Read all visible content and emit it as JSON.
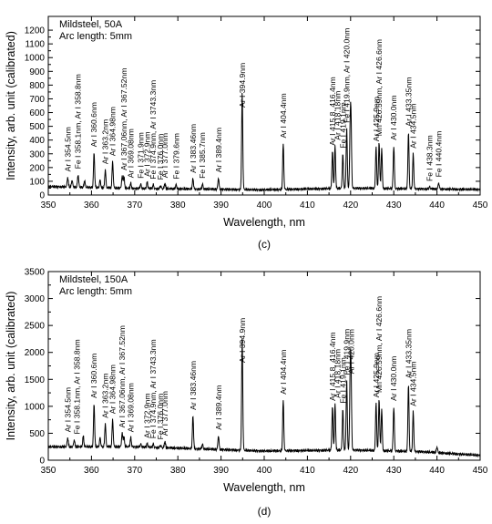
{
  "chart_data": [
    {
      "type": "line",
      "title": "",
      "subtitle_lines": [
        "Mildsteel, 50A",
        "Arc length: 5mm"
      ],
      "xlabel": "Wavelength, nm",
      "ylabel": "Intensity, arb. unit (calibrated)",
      "xlim": [
        350,
        450
      ],
      "ylim": [
        0,
        1300
      ],
      "xticks": [
        350,
        360,
        370,
        380,
        390,
        400,
        410,
        420,
        430,
        440,
        450
      ],
      "yticks": [
        0,
        100,
        200,
        300,
        400,
        500,
        600,
        700,
        800,
        900,
        1000,
        1100,
        1200
      ],
      "caption": "(c)",
      "baseline": [
        [
          350,
          62
        ],
        [
          370,
          48
        ],
        [
          400,
          38
        ],
        [
          420,
          50
        ],
        [
          436,
          45
        ],
        [
          450,
          40
        ]
      ],
      "peaks": [
        [
          354.5,
          130
        ],
        [
          355.5,
          110
        ],
        [
          356.9,
          150
        ],
        [
          358.4,
          105
        ],
        [
          360.6,
          310
        ],
        [
          362.0,
          110
        ],
        [
          363.2,
          185
        ],
        [
          364.9,
          245
        ],
        [
          367.1,
          135
        ],
        [
          367.5,
          140
        ],
        [
          369.1,
          85
        ],
        [
          371.4,
          80
        ],
        [
          372.9,
          95
        ],
        [
          374.3,
          75
        ],
        [
          376.0,
          70
        ],
        [
          377.0,
          85
        ],
        [
          379.6,
          75
        ],
        [
          383.5,
          120
        ],
        [
          385.7,
          80
        ],
        [
          389.4,
          125
        ],
        [
          394.9,
          740
        ],
        [
          404.4,
          375
        ],
        [
          415.8,
          320
        ],
        [
          416.4,
          360
        ],
        [
          418.2,
          300
        ],
        [
          419.1,
          485
        ],
        [
          419.9,
          440
        ],
        [
          420.1,
          500
        ],
        [
          425.9,
          350
        ],
        [
          426.6,
          390
        ],
        [
          427.2,
          340
        ],
        [
          430.0,
          360
        ],
        [
          433.4,
          460
        ],
        [
          434.5,
          300
        ],
        [
          438.3,
          60
        ],
        [
          440.4,
          90
        ]
      ],
      "annotations": [
        {
          "wl": 354.5,
          "text": "Ar I 354.5nm"
        },
        {
          "wl": 356.9,
          "text": "Fe I 358.1nm, Ar I 358.8nm"
        },
        {
          "wl": 360.6,
          "text": "Ar I 360.6nm"
        },
        {
          "wl": 363.2,
          "text": "Ar I 363.2nm"
        },
        {
          "wl": 364.9,
          "text": "Ar I 364.98nm"
        },
        {
          "wl": 367.5,
          "text": "Ar I 367.06nm, Ar I 367.52nm"
        },
        {
          "wl": 369.1,
          "text": "Ar I 369.08nm"
        },
        {
          "wl": 371.4,
          "text": "Fe I 371.9nm"
        },
        {
          "wl": 372.9,
          "text": "Ar I 372.9nm"
        },
        {
          "wl": 374.3,
          "text": "Fe I 374.9nm, Ar I 3743.3nm"
        },
        {
          "wl": 376.0,
          "text": "Fe I 376.0nm"
        },
        {
          "wl": 377.0,
          "text": "Ar I 377.0nm"
        },
        {
          "wl": 379.6,
          "text": "Fe I 379.6nm"
        },
        {
          "wl": 383.5,
          "text": "Ar I 383.46nm"
        },
        {
          "wl": 385.7,
          "text": "Fe I 385.7nm"
        },
        {
          "wl": 389.4,
          "text": "Ar I 389.4nm"
        },
        {
          "wl": 394.9,
          "text": "Ar I 394.9nm"
        },
        {
          "wl": 404.4,
          "text": "Ar I 404.4nm"
        },
        {
          "wl": 415.8,
          "text": "Ar I 415.8, 416.4nm"
        },
        {
          "wl": 417.0,
          "text": "Ar I 418.18nm"
        },
        {
          "wl": 418.2,
          "text": "Fe I 419.1nm"
        },
        {
          "wl": 419.1,
          "text": "Fe I 419.9nm, Ar I 420.0nm"
        },
        {
          "wl": 425.9,
          "text": "Ar I 425.9nm"
        },
        {
          "wl": 426.6,
          "text": "Mn 426.59nm, Ar I 426.6nm"
        },
        {
          "wl": 430.0,
          "text": "Ar I 430.0nm"
        },
        {
          "wl": 433.4,
          "text": "Ar I 433.35nm"
        },
        {
          "wl": 434.5,
          "text": "Ar I 434.5nm"
        },
        {
          "wl": 438.3,
          "text": "Fe I 438.3nm"
        },
        {
          "wl": 440.4,
          "text": "Fe I 440.4nm"
        }
      ]
    },
    {
      "type": "line",
      "title": "",
      "subtitle_lines": [
        "Mildsteel, 150A",
        "Arc length: 5mm"
      ],
      "xlabel": "Wavelength, nm",
      "ylabel": "Intensity, arb. unit (calibrated)",
      "xlim": [
        350,
        450
      ],
      "ylim": [
        0,
        3500
      ],
      "xticks": [
        350,
        360,
        370,
        380,
        390,
        400,
        410,
        420,
        430,
        440,
        450
      ],
      "yticks": [
        0,
        500,
        1000,
        1500,
        2000,
        2500,
        3000,
        3500
      ],
      "caption": "(d)",
      "baseline": [
        [
          350,
          250
        ],
        [
          370,
          250
        ],
        [
          400,
          170
        ],
        [
          420,
          190
        ],
        [
          436,
          160
        ],
        [
          450,
          90
        ]
      ],
      "peaks": [
        [
          354.5,
          420
        ],
        [
          356.0,
          380
        ],
        [
          358.1,
          450
        ],
        [
          360.6,
          1050
        ],
        [
          362.0,
          420
        ],
        [
          363.2,
          680
        ],
        [
          364.9,
          760
        ],
        [
          367.1,
          500
        ],
        [
          367.5,
          450
        ],
        [
          369.1,
          420
        ],
        [
          371.4,
          300
        ],
        [
          372.9,
          310
        ],
        [
          374.3,
          300
        ],
        [
          376.0,
          280
        ],
        [
          377.0,
          350
        ],
        [
          383.5,
          830
        ],
        [
          385.7,
          300
        ],
        [
          389.4,
          460
        ],
        [
          394.9,
          2250
        ],
        [
          404.4,
          1120
        ],
        [
          415.8,
          1000
        ],
        [
          416.4,
          1050
        ],
        [
          418.2,
          950
        ],
        [
          419.1,
          1480
        ],
        [
          419.9,
          1400
        ],
        [
          420.1,
          1500
        ],
        [
          425.9,
          1060
        ],
        [
          426.6,
          1150
        ],
        [
          427.2,
          950
        ],
        [
          430.0,
          1000
        ],
        [
          433.4,
          1420
        ],
        [
          434.5,
          900
        ],
        [
          440.0,
          250
        ]
      ],
      "annotations": [
        {
          "wl": 354.5,
          "text": "Ar I 354.5nm"
        },
        {
          "wl": 356.6,
          "text": "Fe I 358.1nm, Ar I 358.8nm"
        },
        {
          "wl": 360.6,
          "text": "Ar I 360.6nm"
        },
        {
          "wl": 363.2,
          "text": "Ar I 363.2nm"
        },
        {
          "wl": 364.9,
          "text": "Ar I 364.98nm"
        },
        {
          "wl": 367.1,
          "text": "Ar I 367.06nm, Ar I 367.52nm"
        },
        {
          "wl": 369.1,
          "text": "Ar I 369.08nm"
        },
        {
          "wl": 372.9,
          "text": "Ar I 372.9nm"
        },
        {
          "wl": 374.3,
          "text": "Fe I 374.9nm, Ar I 3743.3nm"
        },
        {
          "wl": 376.0,
          "text": "Fe I 376.0nm"
        },
        {
          "wl": 377.0,
          "text": "Ar I 377.0nm"
        },
        {
          "wl": 383.5,
          "text": "Ar I 383.46nm"
        },
        {
          "wl": 389.4,
          "text": "Ar I 389.4nm"
        },
        {
          "wl": 394.9,
          "text": "Ar I 394.9nm"
        },
        {
          "wl": 404.4,
          "text": "Ar I 404.4nm"
        },
        {
          "wl": 415.8,
          "text": "Ar I 415.8, 416.4nm"
        },
        {
          "wl": 417.0,
          "text": "Ar I 418.18nm"
        },
        {
          "wl": 418.2,
          "text": "Fe I 419.1nm"
        },
        {
          "wl": 419.1,
          "text": "Fe I 419.9nm"
        },
        {
          "wl": 420.1,
          "text": "Ar I 420.0nm"
        },
        {
          "wl": 425.9,
          "text": "Ar I 425.9nm"
        },
        {
          "wl": 426.6,
          "text": "Mn 426.59nm, Ar I 426.6nm"
        },
        {
          "wl": 430.0,
          "text": "Ar I 430.0nm"
        },
        {
          "wl": 433.4,
          "text": "Ar I 433.35nm"
        },
        {
          "wl": 434.5,
          "text": "Ar I 434.5nm"
        }
      ]
    }
  ]
}
